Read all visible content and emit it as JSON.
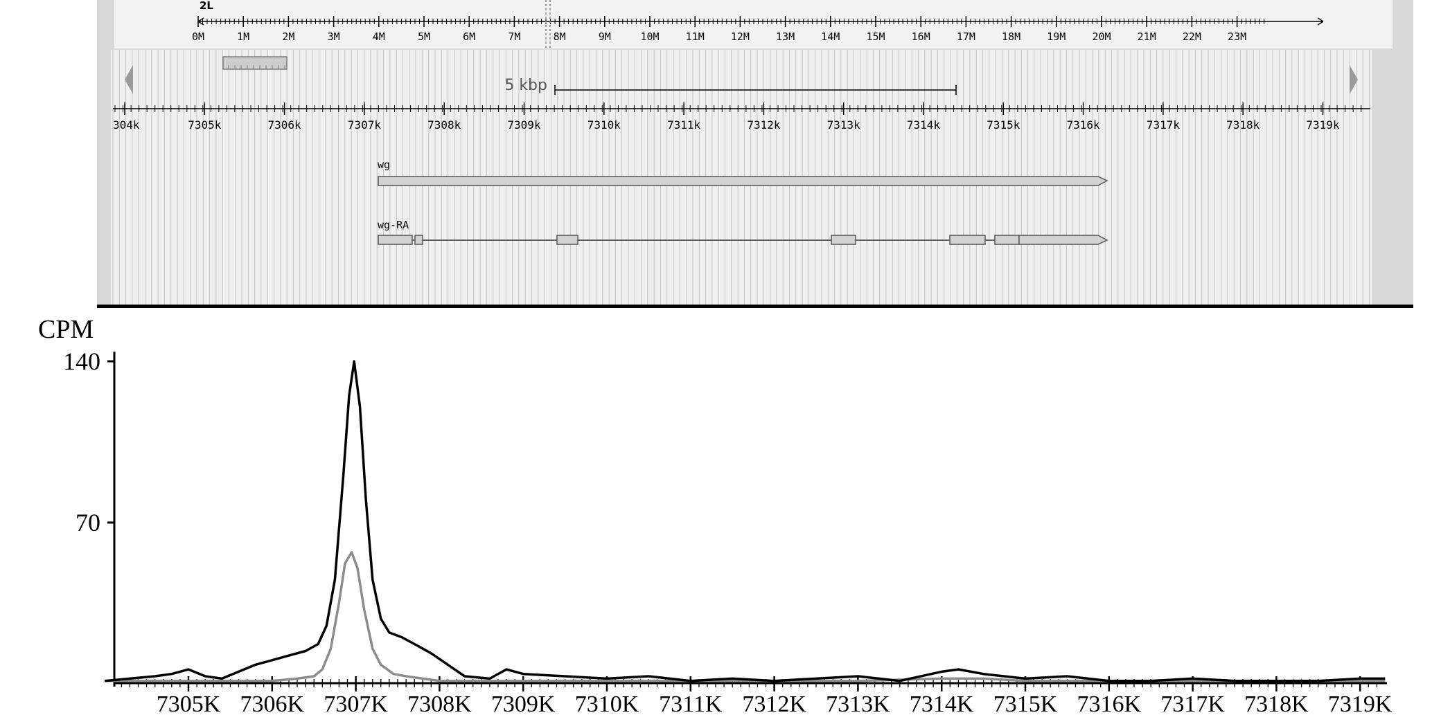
{
  "browser": {
    "chromosome": "2L",
    "overview_ticks": [
      "0M",
      "1M",
      "2M",
      "3M",
      "4M",
      "5M",
      "6M",
      "7M",
      "8M",
      "9M",
      "10M",
      "11M",
      "12M",
      "13M",
      "14M",
      "15M",
      "16M",
      "17M",
      "18M",
      "19M",
      "20M",
      "21M",
      "22M",
      "23M"
    ],
    "scale_label": "5 kbp",
    "detail_ticks": [
      "304k",
      "7305k",
      "7306k",
      "7307k",
      "7308k",
      "7309k",
      "7310k",
      "7311k",
      "7312k",
      "7313k",
      "7314k",
      "7315k",
      "7316k",
      "7317k",
      "7318k",
      "7319k"
    ],
    "gene_label": "wg",
    "transcript_label": "wg-RA",
    "colors": {
      "panel_bg": "#efefef",
      "stripe": "#c4c4c4",
      "feature_fill": "#d2d2d2",
      "frame": "#000000"
    }
  },
  "chart_data": {
    "type": "line",
    "ylabel": "CPM",
    "yticks": [
      "140",
      "70"
    ],
    "ylim": [
      0,
      140
    ],
    "xlim": [
      7304.0,
      7319.3
    ],
    "xtick_labels": [
      "7305K",
      "7306K",
      "7307K",
      "7308K",
      "7309K",
      "7310K",
      "7311K",
      "7312K",
      "7313K",
      "7314K",
      "7315K",
      "7316K",
      "7317K",
      "7318K",
      "7319K"
    ],
    "colors": {
      "dark": "#000000",
      "light": "#8c8c8c"
    },
    "series": [
      {
        "color": "#000000",
        "x": [
          7304.0,
          7304.3,
          7304.6,
          7304.8,
          7305.0,
          7305.2,
          7305.4,
          7305.6,
          7305.8,
          7306.0,
          7306.2,
          7306.4,
          7306.55,
          7306.65,
          7306.75,
          7306.85,
          7306.92,
          7306.98,
          7307.05,
          7307.12,
          7307.2,
          7307.3,
          7307.4,
          7307.55,
          7307.7,
          7307.9,
          7308.1,
          7308.3,
          7308.6,
          7308.8,
          7309.0,
          7309.5,
          7310.0,
          7310.5,
          7311.0,
          7311.5,
          7312.0,
          7312.5,
          7313.0,
          7313.5,
          7314.0,
          7314.2,
          7314.5,
          7315.0,
          7315.5,
          7316.0,
          7316.5,
          7317.0,
          7317.5,
          7318.0,
          7318.5,
          7319.0,
          7319.3
        ],
        "values": [
          1,
          2,
          3,
          4,
          6,
          3,
          2,
          5,
          8,
          10,
          12,
          14,
          17,
          25,
          45,
          90,
          125,
          140,
          120,
          80,
          45,
          28,
          22,
          20,
          17,
          13,
          8,
          3,
          2,
          6,
          4,
          3,
          2,
          3,
          1,
          2,
          1,
          2,
          3,
          1,
          5,
          6,
          4,
          2,
          3,
          1,
          1,
          2,
          1,
          1,
          1,
          2,
          2
        ]
      },
      {
        "color": "#8c8c8c",
        "x": [
          7304.0,
          7304.5,
          7305.0,
          7305.5,
          7306.0,
          7306.3,
          7306.5,
          7306.6,
          7306.7,
          7306.8,
          7306.87,
          7306.95,
          7307.02,
          7307.1,
          7307.2,
          7307.3,
          7307.45,
          7307.6,
          7307.8,
          7308.0,
          7308.5,
          7309.0,
          7309.5,
          7310.0,
          7311.0,
          7312.0,
          7313.0,
          7314.0,
          7314.5,
          7315.0,
          7316.0,
          7317.0,
          7318.0,
          7319.0,
          7319.3
        ],
        "values": [
          1,
          1,
          1,
          1,
          1,
          2,
          3,
          6,
          15,
          35,
          52,
          57,
          50,
          32,
          15,
          8,
          4,
          3,
          2,
          1,
          1,
          1,
          1,
          1,
          1,
          1,
          1,
          2,
          2,
          1,
          1,
          1,
          1,
          1,
          1
        ]
      }
    ]
  }
}
